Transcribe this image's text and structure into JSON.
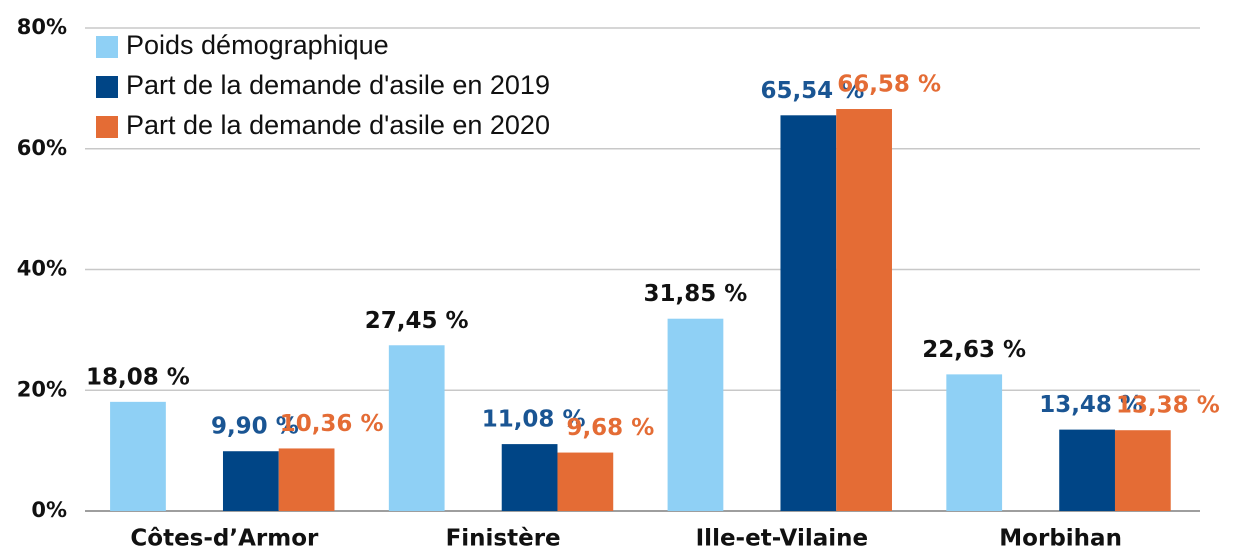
{
  "chart_data": {
    "type": "bar",
    "categories": [
      "Côtes-d’Armor",
      "Finistère",
      "Ille-et-Vilaine",
      "Morbihan"
    ],
    "series": [
      {
        "name": "Poids démographique",
        "color": "#8fd0f5",
        "label_color": "#111111",
        "values": [
          18.08,
          27.45,
          31.85,
          22.63
        ],
        "value_labels": [
          "18,08 %",
          "27,45 %",
          "31,85 %",
          "22,63 %"
        ]
      },
      {
        "name": "Part de la demande d'asile en 2019",
        "color": "#004586",
        "label_color": "#1a5593",
        "values": [
          9.9,
          11.08,
          65.54,
          13.48
        ],
        "value_labels": [
          "9,90 %",
          "11,08 %",
          "65,54 %",
          "13,48 %"
        ]
      },
      {
        "name": "Part de la demande d'asile en 2020",
        "color": "#e46c35",
        "label_color": "#e46c35",
        "values": [
          10.36,
          9.68,
          66.58,
          13.38
        ],
        "value_labels": [
          "10,36 %",
          "9,68 %",
          "66,58 %",
          "13,38 %"
        ]
      }
    ],
    "ylim": [
      0,
      80
    ],
    "yticks": [
      {
        "value": 0,
        "label": "0%"
      },
      {
        "value": 20,
        "label": "20%"
      },
      {
        "value": 40,
        "label": "40%"
      },
      {
        "value": 60,
        "label": "60%"
      },
      {
        "value": 80,
        "label": "80%"
      }
    ],
    "grid": true,
    "legend": "top-left"
  }
}
